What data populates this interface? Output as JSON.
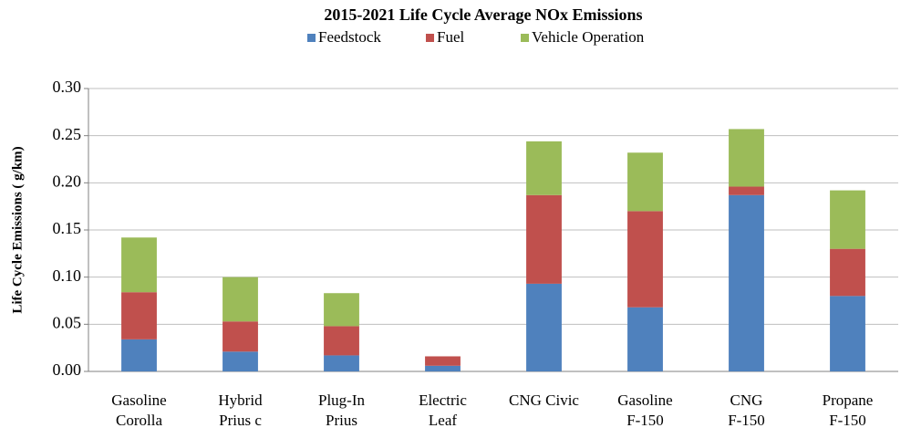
{
  "chart_data": {
    "type": "stacked_bar",
    "title": "2015-2021 Life Cycle Average NOx Emissions",
    "y_label": "Life Cycle Emissions ( g/km)",
    "categories": [
      [
        "Gasoline",
        "Corolla"
      ],
      [
        "Hybrid",
        "Prius c"
      ],
      [
        "Plug-In",
        "Prius"
      ],
      [
        "Electric",
        "Leaf"
      ],
      [
        "CNG Civic"
      ],
      [
        "Gasoline",
        "F-150"
      ],
      [
        "CNG",
        "F-150"
      ],
      [
        "Propane",
        "F-150"
      ]
    ],
    "series": [
      {
        "name": "Feedstock",
        "color": "#4f81bd",
        "values": [
          0.034,
          0.021,
          0.017,
          0.006,
          0.093,
          0.068,
          0.187,
          0.08
        ]
      },
      {
        "name": "Fuel",
        "color": "#c0504d",
        "values": [
          0.05,
          0.032,
          0.031,
          0.01,
          0.094,
          0.102,
          0.009,
          0.05
        ]
      },
      {
        "name": "Vehicle Operation",
        "color": "#9bbb59",
        "values": [
          0.058,
          0.047,
          0.035,
          0,
          0.057,
          0.062,
          0.061,
          0.062
        ]
      }
    ],
    "ylim": [
      0,
      0.3
    ],
    "yticks": [
      {
        "value": 0,
        "label": "0.00"
      },
      {
        "value": 0.05,
        "label": "0.05"
      },
      {
        "value": 0.1,
        "label": "0.10"
      },
      {
        "value": 0.15,
        "label": "0.15"
      },
      {
        "value": 0.2,
        "label": "0.20"
      },
      {
        "value": 0.25,
        "label": "0.25"
      },
      {
        "value": 0.3,
        "label": "0.30"
      }
    ],
    "grid": true,
    "legend": "top"
  }
}
